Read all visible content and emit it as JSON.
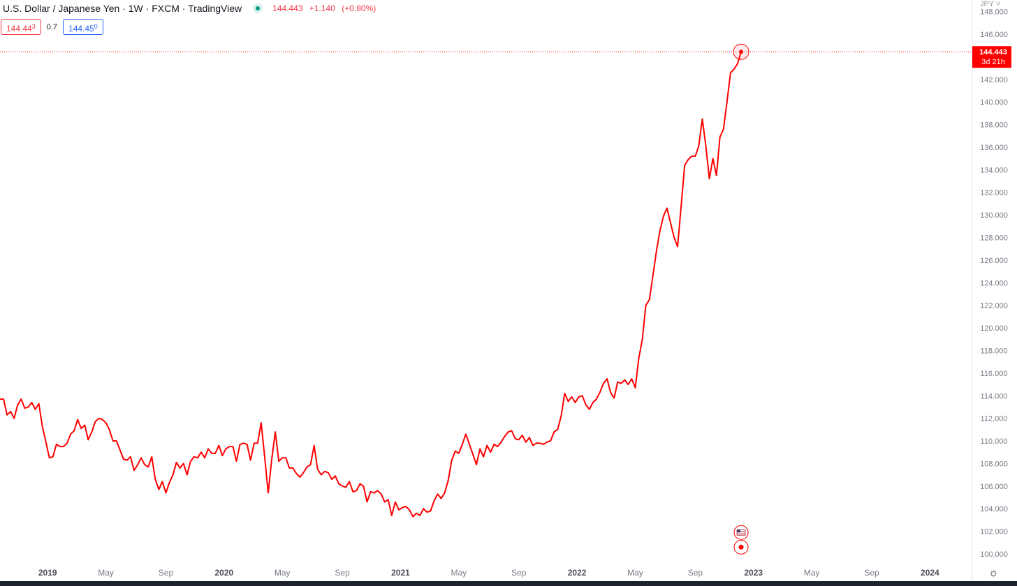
{
  "header": {
    "title": "U.S. Dollar / Japanese Yen · 1W · FXCM · TradingView",
    "last_price": "144.443",
    "change": "+1.140",
    "change_pct": "(+0.80%)",
    "sell_price_main": "144.44",
    "sell_price_pip": "3",
    "spread": "0.7",
    "buy_price_main": "144.45",
    "buy_price_pip": "0"
  },
  "scale": {
    "currency": "JPY",
    "settings_icon": "gear-icon"
  },
  "price_label": {
    "price": "144.443",
    "countdown": "3d 21h"
  },
  "colors": {
    "line": "#ff0000",
    "accent_red": "#f23645",
    "accent_blue": "#2962ff",
    "axis_text": "#787b86",
    "status_dot": "#089981"
  },
  "events": [
    {
      "icon": "us-flag-icon",
      "value": 101.9
    },
    {
      "icon": "event-dot-icon",
      "value": 100.6
    }
  ],
  "chart_data": {
    "type": "line",
    "symbol": "USDJPY",
    "interval": "1W",
    "ylim": [
      99.5,
      148
    ],
    "y_ticks": [
      100,
      102,
      104,
      106,
      108,
      110,
      112,
      114,
      116,
      118,
      120,
      122,
      124,
      126,
      128,
      130,
      132,
      134,
      136,
      138,
      140,
      142,
      144,
      146,
      148
    ],
    "y_tick_labels": [
      "100.000",
      "102.000",
      "104.000",
      "106.000",
      "108.000",
      "110.000",
      "112.000",
      "114.000",
      "116.000",
      "118.000",
      "120.000",
      "122.000",
      "124.000",
      "126.000",
      "128.000",
      "130.000",
      "132.000",
      "134.000",
      "136.000",
      "138.000",
      "140.000",
      "142.000",
      "144.000",
      "146.000",
      "148.000"
    ],
    "xlim": [
      2018.73,
      2024.3
    ],
    "x_ticks": [
      {
        "label": "2019",
        "x": 2019.0,
        "bold": true
      },
      {
        "label": "May",
        "x": 2019.33,
        "bold": false
      },
      {
        "label": "Sep",
        "x": 2019.67,
        "bold": false
      },
      {
        "label": "2020",
        "x": 2020.0,
        "bold": true
      },
      {
        "label": "May",
        "x": 2020.33,
        "bold": false
      },
      {
        "label": "Sep",
        "x": 2020.67,
        "bold": false
      },
      {
        "label": "2021",
        "x": 2021.0,
        "bold": true
      },
      {
        "label": "May",
        "x": 2021.33,
        "bold": false
      },
      {
        "label": "Sep",
        "x": 2021.67,
        "bold": false
      },
      {
        "label": "2022",
        "x": 2022.0,
        "bold": true
      },
      {
        "label": "May",
        "x": 2022.33,
        "bold": false
      },
      {
        "label": "Sep",
        "x": 2022.67,
        "bold": false
      },
      {
        "label": "2023",
        "x": 2023.0,
        "bold": true
      },
      {
        "label": "May",
        "x": 2023.33,
        "bold": false
      },
      {
        "label": "Sep",
        "x": 2023.67,
        "bold": false
      },
      {
        "label": "2024",
        "x": 2024.0,
        "bold": true
      }
    ],
    "current_value": 144.443,
    "series": [
      {
        "points": [
          [
            2018.73,
            113.7
          ],
          [
            2018.75,
            113.7
          ],
          [
            2018.77,
            112.3
          ],
          [
            2018.79,
            112.6
          ],
          [
            2018.81,
            112.0
          ],
          [
            2018.83,
            113.2
          ],
          [
            2018.85,
            113.7
          ],
          [
            2018.87,
            112.9
          ],
          [
            2018.89,
            113.0
          ],
          [
            2018.91,
            113.4
          ],
          [
            2018.93,
            112.8
          ],
          [
            2018.95,
            113.3
          ],
          [
            2018.97,
            111.3
          ],
          [
            2018.99,
            109.9
          ],
          [
            2019.01,
            108.5
          ],
          [
            2019.03,
            108.6
          ],
          [
            2019.05,
            109.7
          ],
          [
            2019.07,
            109.5
          ],
          [
            2019.09,
            109.5
          ],
          [
            2019.11,
            109.8
          ],
          [
            2019.13,
            110.6
          ],
          [
            2019.15,
            110.9
          ],
          [
            2019.17,
            111.9
          ],
          [
            2019.19,
            111.1
          ],
          [
            2019.21,
            111.4
          ],
          [
            2019.23,
            110.1
          ],
          [
            2019.25,
            110.8
          ],
          [
            2019.27,
            111.7
          ],
          [
            2019.29,
            112.0
          ],
          [
            2019.31,
            111.9
          ],
          [
            2019.33,
            111.6
          ],
          [
            2019.35,
            111.0
          ],
          [
            2019.37,
            110.0
          ],
          [
            2019.39,
            110.0
          ],
          [
            2019.41,
            109.2
          ],
          [
            2019.43,
            108.4
          ],
          [
            2019.45,
            108.3
          ],
          [
            2019.47,
            108.6
          ],
          [
            2019.49,
            107.4
          ],
          [
            2019.51,
            107.9
          ],
          [
            2019.53,
            108.5
          ],
          [
            2019.55,
            107.9
          ],
          [
            2019.57,
            107.7
          ],
          [
            2019.59,
            108.6
          ],
          [
            2019.61,
            106.6
          ],
          [
            2019.63,
            105.7
          ],
          [
            2019.65,
            106.4
          ],
          [
            2019.67,
            105.4
          ],
          [
            2019.69,
            106.3
          ],
          [
            2019.71,
            107.0
          ],
          [
            2019.73,
            108.1
          ],
          [
            2019.75,
            107.6
          ],
          [
            2019.77,
            108.0
          ],
          [
            2019.79,
            107.0
          ],
          [
            2019.81,
            108.2
          ],
          [
            2019.83,
            108.6
          ],
          [
            2019.85,
            108.5
          ],
          [
            2019.87,
            109.0
          ],
          [
            2019.89,
            108.5
          ],
          [
            2019.91,
            109.3
          ],
          [
            2019.93,
            108.9
          ],
          [
            2019.95,
            108.9
          ],
          [
            2019.97,
            109.6
          ],
          [
            2019.99,
            108.7
          ],
          [
            2020.01,
            109.3
          ],
          [
            2020.03,
            109.5
          ],
          [
            2020.05,
            109.5
          ],
          [
            2020.07,
            108.2
          ],
          [
            2020.09,
            109.7
          ],
          [
            2020.11,
            109.8
          ],
          [
            2020.13,
            109.7
          ],
          [
            2020.15,
            108.3
          ],
          [
            2020.17,
            109.8
          ],
          [
            2020.19,
            109.8
          ],
          [
            2020.21,
            111.6
          ],
          [
            2020.23,
            108.6
          ],
          [
            2020.25,
            105.4
          ],
          [
            2020.27,
            108.4
          ],
          [
            2020.29,
            110.8
          ],
          [
            2020.31,
            108.2
          ],
          [
            2020.33,
            108.5
          ],
          [
            2020.35,
            108.5
          ],
          [
            2020.37,
            107.6
          ],
          [
            2020.39,
            107.6
          ],
          [
            2020.41,
            107.1
          ],
          [
            2020.43,
            106.8
          ],
          [
            2020.45,
            107.2
          ],
          [
            2020.47,
            107.7
          ],
          [
            2020.49,
            107.9
          ],
          [
            2020.51,
            109.6
          ],
          [
            2020.53,
            107.5
          ],
          [
            2020.55,
            107.0
          ],
          [
            2020.57,
            107.3
          ],
          [
            2020.59,
            107.2
          ],
          [
            2020.61,
            106.6
          ],
          [
            2020.63,
            106.9
          ],
          [
            2020.65,
            106.2
          ],
          [
            2020.67,
            106.0
          ],
          [
            2020.69,
            105.9
          ],
          [
            2020.71,
            106.4
          ],
          [
            2020.73,
            105.5
          ],
          [
            2020.75,
            105.6
          ],
          [
            2020.77,
            106.2
          ],
          [
            2020.79,
            106.0
          ],
          [
            2020.81,
            104.6
          ],
          [
            2020.83,
            105.5
          ],
          [
            2020.85,
            105.4
          ],
          [
            2020.87,
            105.6
          ],
          [
            2020.89,
            105.3
          ],
          [
            2020.91,
            104.6
          ],
          [
            2020.93,
            104.8
          ],
          [
            2020.95,
            103.4
          ],
          [
            2020.97,
            104.6
          ],
          [
            2020.99,
            103.9
          ],
          [
            2021.01,
            104.1
          ],
          [
            2021.03,
            104.2
          ],
          [
            2021.05,
            103.9
          ],
          [
            2021.07,
            103.3
          ],
          [
            2021.09,
            103.6
          ],
          [
            2021.11,
            103.4
          ],
          [
            2021.13,
            104.0
          ],
          [
            2021.15,
            103.7
          ],
          [
            2021.17,
            103.8
          ],
          [
            2021.19,
            104.7
          ],
          [
            2021.21,
            105.3
          ],
          [
            2021.23,
            104.9
          ],
          [
            2021.25,
            105.4
          ],
          [
            2021.27,
            106.5
          ],
          [
            2021.29,
            108.3
          ],
          [
            2021.31,
            109.1
          ],
          [
            2021.33,
            108.9
          ],
          [
            2021.35,
            109.7
          ],
          [
            2021.37,
            110.6
          ],
          [
            2021.39,
            109.7
          ],
          [
            2021.41,
            108.8
          ],
          [
            2021.43,
            107.9
          ],
          [
            2021.45,
            109.3
          ],
          [
            2021.47,
            108.6
          ],
          [
            2021.49,
            109.6
          ],
          [
            2021.51,
            109.0
          ],
          [
            2021.53,
            109.7
          ],
          [
            2021.55,
            109.5
          ],
          [
            2021.57,
            109.9
          ],
          [
            2021.59,
            110.4
          ],
          [
            2021.61,
            110.8
          ],
          [
            2021.63,
            110.9
          ],
          [
            2021.65,
            110.2
          ],
          [
            2021.67,
            110.1
          ],
          [
            2021.69,
            110.5
          ],
          [
            2021.71,
            109.9
          ],
          [
            2021.73,
            110.3
          ],
          [
            2021.75,
            109.6
          ],
          [
            2021.77,
            109.8
          ],
          [
            2021.79,
            109.8
          ],
          [
            2021.81,
            109.7
          ],
          [
            2021.83,
            109.9
          ],
          [
            2021.85,
            110.0
          ],
          [
            2021.87,
            110.8
          ],
          [
            2021.89,
            111.0
          ],
          [
            2021.91,
            112.2
          ],
          [
            2021.93,
            114.2
          ],
          [
            2021.95,
            113.5
          ],
          [
            2021.97,
            113.9
          ],
          [
            2021.99,
            113.4
          ],
          [
            2022.01,
            113.9
          ],
          [
            2022.03,
            114.0
          ],
          [
            2022.05,
            113.2
          ],
          [
            2022.07,
            112.8
          ],
          [
            2022.09,
            113.4
          ],
          [
            2022.11,
            113.7
          ],
          [
            2022.13,
            114.3
          ],
          [
            2022.15,
            115.1
          ],
          [
            2022.17,
            115.5
          ],
          [
            2022.19,
            114.3
          ],
          [
            2022.21,
            113.8
          ],
          [
            2022.23,
            115.2
          ],
          [
            2022.25,
            115.1
          ],
          [
            2022.27,
            115.4
          ],
          [
            2022.29,
            115.0
          ],
          [
            2022.31,
            115.5
          ],
          [
            2022.33,
            114.7
          ],
          [
            2022.35,
            117.3
          ],
          [
            2022.37,
            119.0
          ],
          [
            2022.39,
            122.0
          ],
          [
            2022.41,
            122.5
          ],
          [
            2022.43,
            124.6
          ],
          [
            2022.45,
            126.8
          ],
          [
            2022.47,
            128.6
          ],
          [
            2022.49,
            129.9
          ],
          [
            2022.51,
            130.6
          ],
          [
            2022.53,
            129.3
          ],
          [
            2022.55,
            128.0
          ],
          [
            2022.57,
            127.2
          ],
          [
            2022.59,
            130.8
          ],
          [
            2022.61,
            134.4
          ],
          [
            2022.63,
            134.9
          ],
          [
            2022.65,
            135.2
          ],
          [
            2022.67,
            135.2
          ],
          [
            2022.69,
            136.1
          ],
          [
            2022.71,
            138.5
          ],
          [
            2022.73,
            136.1
          ],
          [
            2022.75,
            133.2
          ],
          [
            2022.77,
            135.0
          ],
          [
            2022.79,
            133.5
          ],
          [
            2022.81,
            136.9
          ],
          [
            2022.83,
            137.6
          ],
          [
            2022.85,
            140.0
          ],
          [
            2022.87,
            142.6
          ],
          [
            2022.89,
            142.9
          ],
          [
            2022.91,
            143.4
          ],
          [
            2022.93,
            144.443
          ]
        ]
      }
    ]
  }
}
